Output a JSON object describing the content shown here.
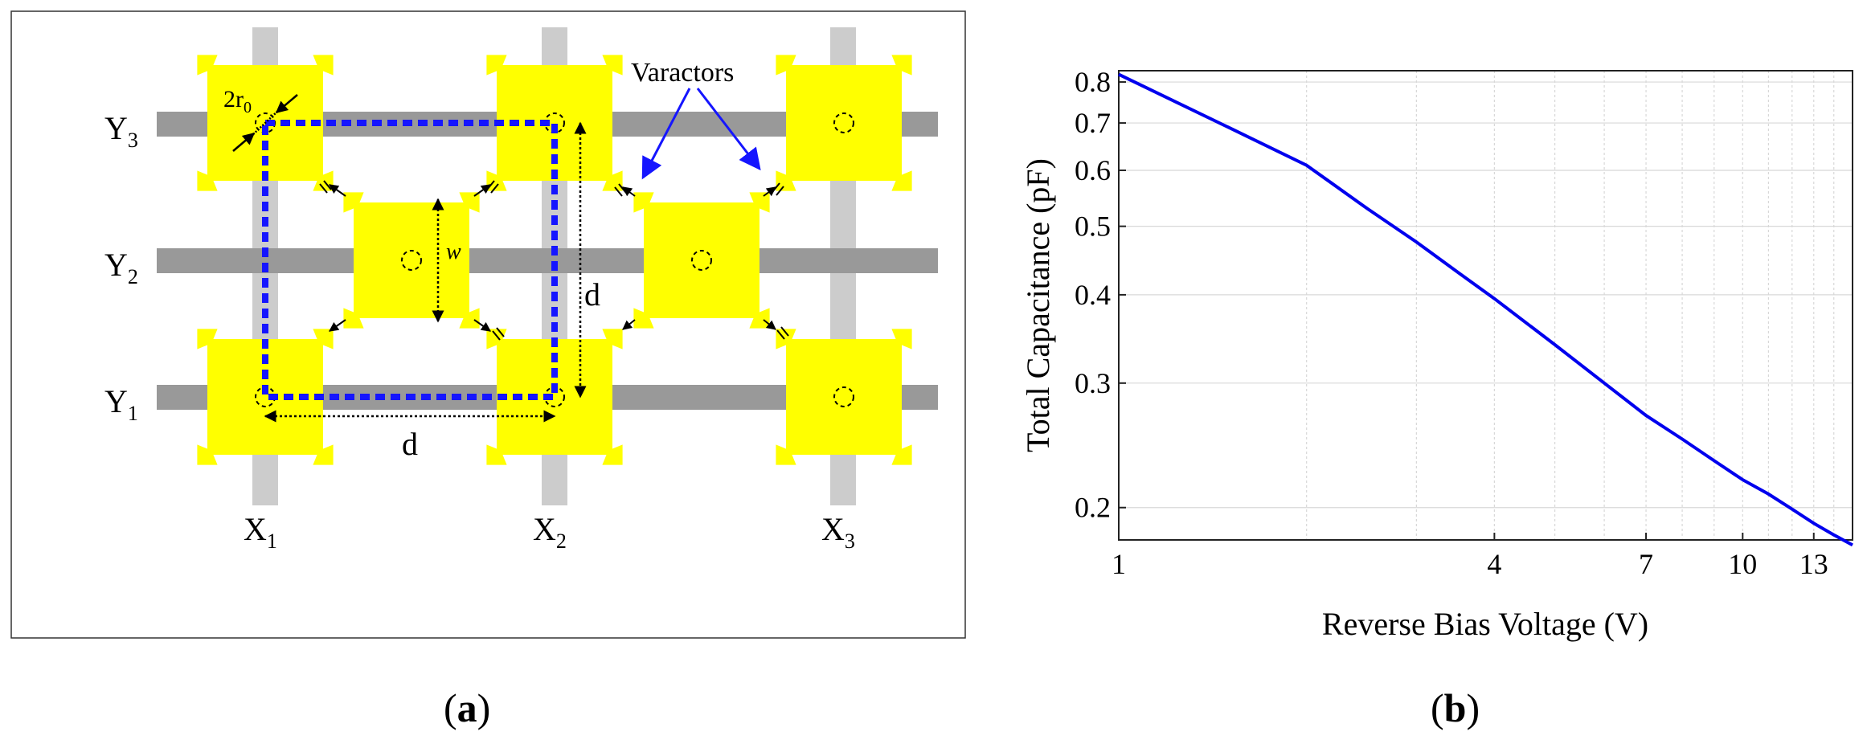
{
  "panel_a": {
    "row_labels": [
      "Y",
      "3",
      "Y",
      "2",
      "Y",
      "1"
    ],
    "col_labels": [
      "X",
      "1",
      "X",
      "2",
      "X",
      "3"
    ],
    "varactors_label": "Varactors",
    "radius_label": "2r",
    "radius_sub": "0",
    "width_label": "w",
    "spacing_label_vertical": "d",
    "spacing_label_horizontal": "d",
    "caption_open": "(",
    "caption_letter": "a",
    "caption_close": ")",
    "colors": {
      "patch": "#ffff00",
      "row_bar": "#999999",
      "col_bar": "#cccccc",
      "unit_cell_path": "#1515ff",
      "varactor_arrow": "#1515ff"
    }
  },
  "panel_b": {
    "caption_open": "(",
    "caption_letter": "b",
    "caption_close": ")",
    "chart_data": {
      "type": "line",
      "xlabel": "Reverse Bias Voltage (V)",
      "ylabel": "Total Capacitance (pF)",
      "x_scale": "log",
      "y_scale": "log",
      "xlim": [
        1,
        15
      ],
      "ylim": [
        0.18,
        0.83
      ],
      "x_ticks": [
        1,
        4,
        7,
        10,
        13
      ],
      "y_ticks": [
        0.2,
        0.3,
        0.4,
        0.5,
        0.6,
        0.7,
        0.8
      ],
      "grid": true,
      "series": [
        {
          "color": "#0000ee",
          "x": [
            1,
            1.5,
            2,
            2.5,
            3,
            3.5,
            4,
            5,
            6,
            7,
            8,
            9,
            10,
            11,
            12,
            13,
            14,
            15
          ],
          "y": [
            0.82,
            0.69,
            0.61,
            0.53,
            0.475,
            0.43,
            0.395,
            0.34,
            0.3,
            0.27,
            0.25,
            0.233,
            0.219,
            0.209,
            0.199,
            0.19,
            0.183,
            0.177
          ]
        }
      ]
    }
  }
}
